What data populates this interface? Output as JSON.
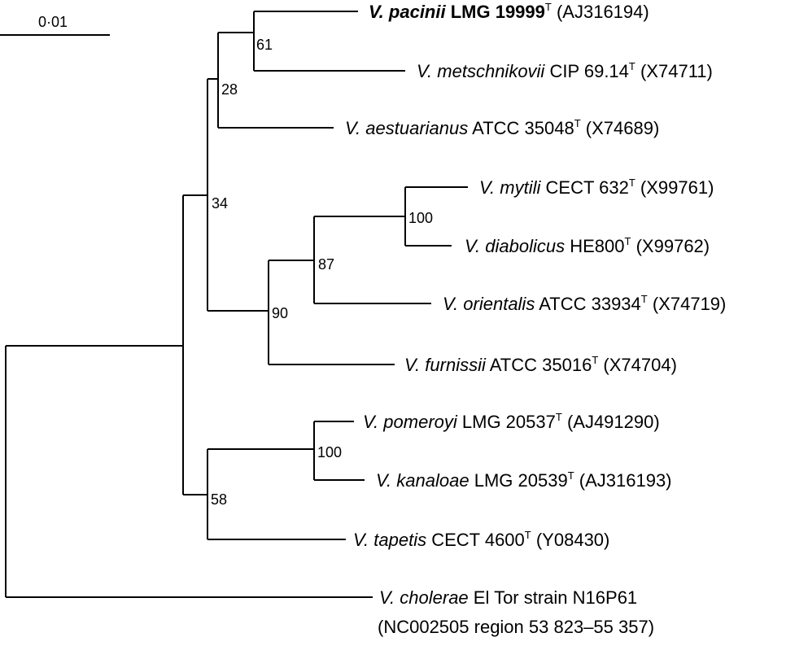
{
  "scale_bar": {
    "label": "0·01"
  },
  "taxa": [
    {
      "genus": "V.",
      "species": "pacinii",
      "strain": "LMG 19999",
      "type_mark": "T",
      "accession": "(AJ316194)",
      "bold": true
    },
    {
      "genus": "V.",
      "species": "metschnikovii",
      "strain": "CIP 69.14",
      "type_mark": "T",
      "accession": "(X74711)",
      "bold": false
    },
    {
      "genus": "V.",
      "species": "aestuarianus",
      "strain": "ATCC 35048",
      "type_mark": "T",
      "accession": "(X74689)",
      "bold": false
    },
    {
      "genus": "V.",
      "species": "mytili",
      "strain": "CECT 632",
      "type_mark": "T",
      "accession": "(X99761)",
      "bold": false
    },
    {
      "genus": "V.",
      "species": "diabolicus",
      "strain": "HE800",
      "type_mark": "T",
      "accession": "(X99762)",
      "bold": false
    },
    {
      "genus": "V.",
      "species": "orientalis",
      "strain": "ATCC 33934",
      "type_mark": "T",
      "accession": "(X74719)",
      "bold": false
    },
    {
      "genus": "V.",
      "species": "furnissii",
      "strain": "ATCC 35016",
      "type_mark": "T",
      "accession": "(X74704)",
      "bold": false
    },
    {
      "genus": "V.",
      "species": "pomeroyi",
      "strain": "LMG 20537",
      "type_mark": "T",
      "accession": "(AJ491290)",
      "bold": false
    },
    {
      "genus": "V.",
      "species": "kanaloae",
      "strain": "LMG 20539",
      "type_mark": "T",
      "accession": "(AJ316193)",
      "bold": false
    },
    {
      "genus": "V.",
      "species": "tapetis",
      "strain": "CECT 4600",
      "type_mark": "T",
      "accession": "(Y08430)",
      "bold": false
    },
    {
      "genus": "V.",
      "species": "cholerae",
      "strain": "El Tor strain N16P61",
      "type_mark": "",
      "accession": "",
      "line2": "(NC002505 region 53 823–55 357)",
      "bold": false
    }
  ],
  "bootstrap": {
    "pacinii_metschnikovii": "61",
    "with_aestuarianus": "28",
    "upper_clade": "34",
    "mytili_diabolicus": "100",
    "with_orientalis": "87",
    "with_furnissii": "90",
    "pomeroyi_kanaloae": "100",
    "with_tapetis": "58"
  }
}
